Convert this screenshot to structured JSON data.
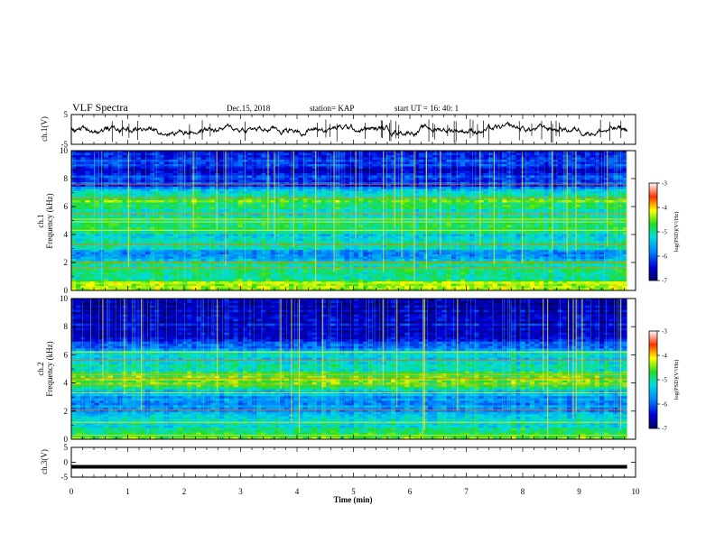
{
  "header": {
    "title": "VLF Spectra",
    "date": "Dec.15, 2018",
    "station": "station= KAP",
    "start": "start  UT =    16: 40: 1"
  },
  "chart_data": [
    {
      "type": "line",
      "name": "ch1-waveform",
      "ylabel": "ch.1(V)",
      "ylim": [
        -5,
        5
      ],
      "yticks": [
        5,
        -5
      ],
      "xlim": [
        0,
        10
      ],
      "xmax_data": 9.85,
      "amplitude_range": [
        -4.5,
        3.5
      ],
      "color": "#000000"
    },
    {
      "type": "heatmap",
      "name": "ch1-spectrogram",
      "ylabel": "ch.1\nFrequency (kHz)",
      "ylim": [
        0,
        10
      ],
      "yticks": [
        0,
        2,
        4,
        6,
        8,
        10
      ],
      "xlim": [
        0,
        10
      ],
      "xmax_data": 9.85,
      "colorbar": {
        "label": "log(PSD)(V²/Hz)",
        "range": [
          -7,
          -3
        ],
        "ticks": [
          -3,
          -4,
          -5,
          -6,
          -7
        ]
      },
      "level_profile": [
        [
          0,
          -4.3
        ],
        [
          0.5,
          -4.4
        ],
        [
          1.0,
          -5.2
        ],
        [
          1.5,
          -4.9
        ],
        [
          2.0,
          -5.0
        ],
        [
          2.5,
          -5.8
        ],
        [
          3.0,
          -5.2
        ],
        [
          3.5,
          -5.0
        ],
        [
          4.0,
          -5.3
        ],
        [
          4.5,
          -4.6
        ],
        [
          5.0,
          -4.9
        ],
        [
          5.5,
          -5.1
        ],
        [
          6.0,
          -5.1
        ],
        [
          6.5,
          -4.5
        ],
        [
          7.0,
          -5.3
        ],
        [
          7.5,
          -6.3
        ],
        [
          8.0,
          -6.0
        ],
        [
          8.5,
          -6.5
        ],
        [
          9.0,
          -6.2
        ],
        [
          9.5,
          -6.4
        ],
        [
          10.0,
          -6.5
        ]
      ],
      "bright_lines_khz": [
        0.5,
        1.6,
        2.0,
        3.3,
        4.3,
        4.9,
        5.1,
        5.5,
        6.6,
        7.6
      ]
    },
    {
      "type": "heatmap",
      "name": "ch2-spectrogram",
      "ylabel": "ch.2\nFrequency (kHz)",
      "ylim": [
        0,
        10
      ],
      "yticks": [
        0,
        2,
        4,
        6,
        8,
        10
      ],
      "xlim": [
        0,
        10
      ],
      "xmax_data": 9.85,
      "colorbar": {
        "label": "log(PSD)(V²/Hz)",
        "range": [
          -7,
          -3
        ],
        "ticks": [
          -3,
          -4,
          -5,
          -6,
          -7
        ]
      },
      "level_profile": [
        [
          0,
          -4.5
        ],
        [
          0.5,
          -5.0
        ],
        [
          1.0,
          -5.3
        ],
        [
          1.5,
          -5.4
        ],
        [
          2.0,
          -5.8
        ],
        [
          2.5,
          -5.6
        ],
        [
          3.0,
          -5.6
        ],
        [
          3.5,
          -5.2
        ],
        [
          4.0,
          -4.7
        ],
        [
          4.5,
          -4.4
        ],
        [
          5.0,
          -5.1
        ],
        [
          5.5,
          -5.3
        ],
        [
          6.0,
          -5.0
        ],
        [
          6.5,
          -5.7
        ],
        [
          7.0,
          -6.2
        ],
        [
          7.5,
          -6.6
        ],
        [
          8.0,
          -6.5
        ],
        [
          8.5,
          -6.5
        ],
        [
          9.0,
          -6.6
        ],
        [
          9.5,
          -6.6
        ],
        [
          10.0,
          -6.6
        ]
      ],
      "bright_lines_khz": [
        0.3,
        1.2,
        2.1,
        3.3,
        3.9,
        4.3,
        4.6,
        5.6,
        6.2
      ]
    },
    {
      "type": "line",
      "name": "ch3-waveform",
      "ylabel": "ch.3(V)",
      "ylim": [
        -5,
        5
      ],
      "yticks": [
        5,
        0,
        -5
      ],
      "xlim": [
        0,
        10
      ],
      "xmax_data": 9.85,
      "constant_value": -1.5,
      "color": "#000000"
    }
  ],
  "xaxis": {
    "label": "Time  (min)",
    "range": [
      0,
      10
    ],
    "ticks": [
      0,
      1,
      2,
      3,
      4,
      5,
      6,
      7,
      8,
      9,
      10
    ]
  }
}
